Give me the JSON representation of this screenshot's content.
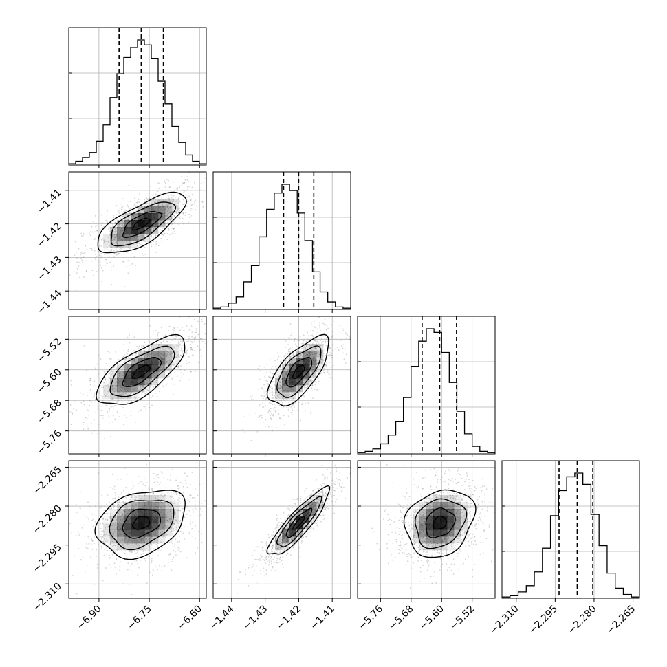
{
  "chart_data": {
    "type": "corner",
    "n_params": 4,
    "parameters": [
      {
        "index": 0,
        "xlim": [
          -6.99,
          -6.58
        ],
        "ticks": [
          -6.9,
          -6.75,
          -6.6
        ],
        "tick_labels": [
          "−6.90",
          "−6.75",
          "−6.60"
        ],
        "quantiles": [
          -6.84,
          -6.774,
          -6.708
        ]
      },
      {
        "index": 1,
        "xlim": [
          -1.4455,
          -1.4045
        ],
        "ticks": [
          -1.44,
          -1.43,
          -1.42,
          -1.41
        ],
        "tick_labels": [
          "−1.44",
          "−1.43",
          "−1.42",
          "−1.41"
        ],
        "quantiles": [
          -1.4245,
          -1.42,
          -1.4155
        ]
      },
      {
        "index": 2,
        "xlim": [
          -5.82,
          -5.46
        ],
        "ticks": [
          -5.76,
          -5.68,
          -5.6,
          -5.52
        ],
        "tick_labels": [
          "−5.76",
          "−5.68",
          "−5.60",
          "−5.52"
        ],
        "quantiles": [
          -5.651,
          -5.605,
          -5.561
        ]
      },
      {
        "index": 3,
        "xlim": [
          -2.3155,
          -2.2625
        ],
        "ticks": [
          -2.31,
          -2.295,
          -2.28,
          -2.265
        ],
        "tick_labels": [
          "−2.310",
          "−2.295",
          "−2.280",
          "−2.265"
        ],
        "quantiles": [
          -2.2935,
          -2.2865,
          -2.2805
        ]
      }
    ],
    "y_ticks": {
      "1": {
        "ticks": [
          -1.41,
          -1.42,
          -1.43,
          -1.44
        ],
        "tick_labels": [
          "−1.41",
          "−1.42",
          "−1.43",
          "−1.44"
        ]
      },
      "2": {
        "ticks": [
          -5.52,
          -5.6,
          -5.68,
          -5.76
        ],
        "tick_labels": [
          "−5.52",
          "−5.60",
          "−5.68",
          "−5.76"
        ]
      },
      "3": {
        "ticks": [
          -2.265,
          -2.28,
          -2.295,
          -2.31
        ],
        "tick_labels": [
          "−2.265",
          "−2.280",
          "−2.295",
          "−2.310"
        ]
      }
    },
    "histograms": [
      [
        0.01,
        0.03,
        0.06,
        0.1,
        0.19,
        0.32,
        0.54,
        0.73,
        0.86,
        0.94,
        1.0,
        0.96,
        0.85,
        0.67,
        0.49,
        0.31,
        0.18,
        0.08,
        0.03,
        0.01
      ],
      [
        0.01,
        0.02,
        0.05,
        0.1,
        0.22,
        0.35,
        0.58,
        0.8,
        0.93,
        1.0,
        0.95,
        0.77,
        0.55,
        0.3,
        0.14,
        0.06,
        0.02,
        0.01
      ],
      [
        0.01,
        0.02,
        0.04,
        0.08,
        0.15,
        0.26,
        0.45,
        0.7,
        0.9,
        1.0,
        0.97,
        0.81,
        0.57,
        0.34,
        0.16,
        0.06,
        0.02,
        0.01
      ],
      [
        0.01,
        0.02,
        0.05,
        0.1,
        0.21,
        0.4,
        0.66,
        0.86,
        0.97,
        1.0,
        0.91,
        0.67,
        0.42,
        0.2,
        0.08,
        0.03,
        0.01
      ]
    ],
    "correlations": {
      "1-0": 0.72,
      "2-0": 0.7,
      "2-1": 0.68,
      "3-0": 0.3,
      "3-1": 0.88,
      "3-2": 0.2
    },
    "contour_levels": [
      0.118,
      0.393,
      0.675,
      0.865
    ],
    "grid": true,
    "colors": {
      "contour": "#000000",
      "sample": "#888888",
      "grid": "#b0b0b0",
      "density": "#000000"
    }
  }
}
